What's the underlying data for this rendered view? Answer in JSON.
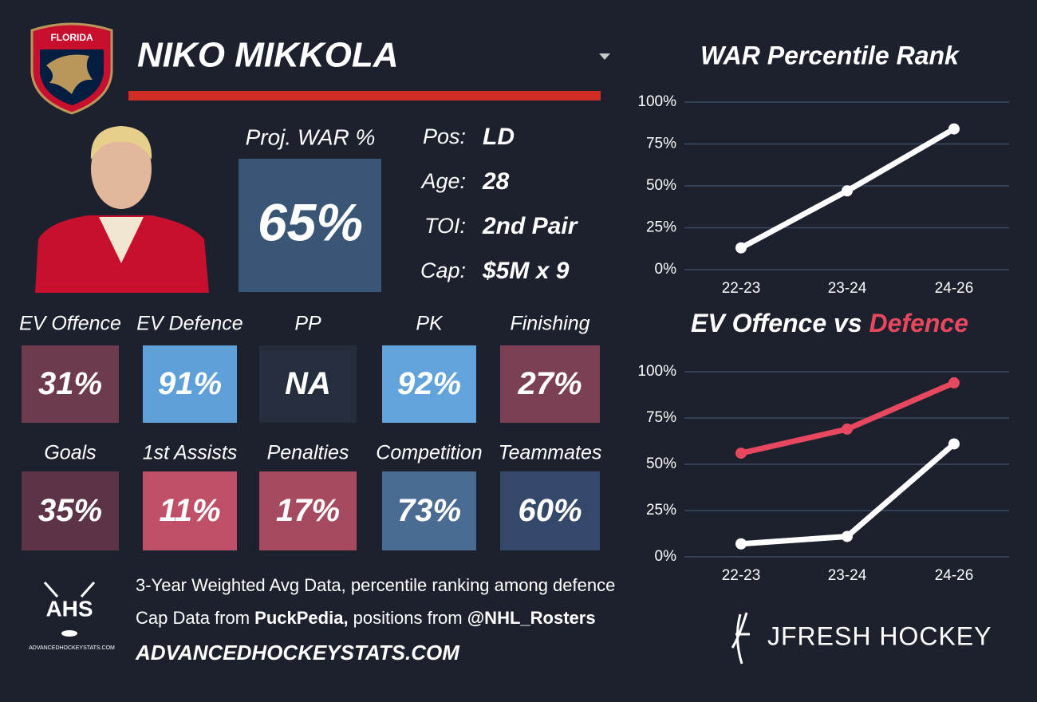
{
  "player": {
    "team": "FLORIDA",
    "name": "NIKO MIKKOLA"
  },
  "proj_war": {
    "label": "Proj. WAR %",
    "value": "65%"
  },
  "info": [
    {
      "label": "Pos:",
      "value": "LD"
    },
    {
      "label": "Age:",
      "value": "28"
    },
    {
      "label": "TOI:",
      "value": "2nd Pair"
    },
    {
      "label": "Cap:",
      "value": "$5M x 9"
    }
  ],
  "tiles": [
    {
      "label": "EV Offence",
      "value": "31%",
      "color": "#6e3a4d"
    },
    {
      "label": "EV Defence",
      "value": "91%",
      "color": "#5fa0d8"
    },
    {
      "label": "PP",
      "value": "NA",
      "color": "#252e3c"
    },
    {
      "label": "PK",
      "value": "92%",
      "color": "#63a3dc"
    },
    {
      "label": "Finishing",
      "value": "27%",
      "color": "#7c4055"
    },
    {
      "label": "Goals",
      "value": "35%",
      "color": "#5d3447"
    },
    {
      "label": "1st Assists",
      "value": "11%",
      "color": "#c05068"
    },
    {
      "label": "Penalties",
      "value": "17%",
      "color": "#a54a5f"
    },
    {
      "label": "Competition",
      "value": "73%",
      "color": "#4a6b92"
    },
    {
      "label": "Teammates",
      "value": "60%",
      "color": "#34486a"
    }
  ],
  "footer": {
    "logo": "AHS",
    "logo_site": "ADVANCEDHOCKEYSTATS.COM",
    "note": "3-Year Weighted Avg Data, percentile ranking among defence",
    "source": [
      "Cap Data from ",
      "PuckPedia,",
      " positions from ",
      "@NHL_Rosters"
    ],
    "site": "ADVANCEDHOCKEYSTATS.COM",
    "brand": "JFRESH HOCKEY"
  },
  "chart_data": [
    {
      "type": "line",
      "title": "WAR Percentile Rank",
      "categories": [
        "22-23",
        "23-24",
        "24-26"
      ],
      "series": [
        {
          "name": "WAR",
          "color": "#ffffff",
          "values": [
            13,
            47,
            84
          ]
        }
      ],
      "ylim": [
        0,
        100
      ],
      "grid": true,
      "yticks": [
        {
          "value": 0,
          "label": "0%"
        },
        {
          "value": 25,
          "label": "25%"
        },
        {
          "value": 50,
          "label": "50%"
        },
        {
          "value": 75,
          "label": "75%"
        },
        {
          "value": 100,
          "label": "100%"
        }
      ]
    },
    {
      "type": "line",
      "title_connector": "vs",
      "categories": [
        "22-23",
        "23-24",
        "24-26"
      ],
      "series": [
        {
          "name": "EV Offence",
          "color": "#ffffff",
          "values": [
            7,
            11,
            61
          ]
        },
        {
          "name": "Defence",
          "color": "#e8485f",
          "values": [
            56,
            69,
            94
          ]
        }
      ],
      "ylim": [
        0,
        100
      ],
      "grid": true,
      "yticks": [
        {
          "value": 0,
          "label": "0%"
        },
        {
          "value": 25,
          "label": "25%"
        },
        {
          "value": 50,
          "label": "50%"
        },
        {
          "value": 75,
          "label": "75%"
        },
        {
          "value": 100,
          "label": "100%"
        }
      ]
    }
  ]
}
